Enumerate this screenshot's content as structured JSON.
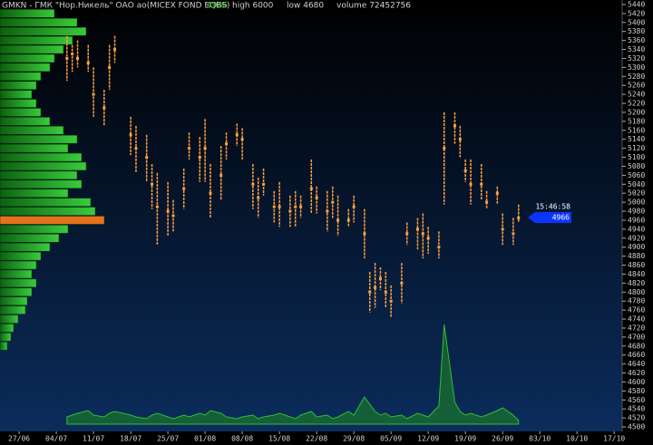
{
  "chart_data": {
    "type": "candlestick",
    "title": "GMKN - ГМК \"Нор.Никель\" ОАО ао(MICEX FOND EQBS)",
    "last_price": 4966,
    "high_label": "high 6000",
    "low_label": "low 4680",
    "volume_label": "volume 72452756",
    "time_label": "15:46:58",
    "candle_color": "#ffa040",
    "volume_color": "#1f8a1f",
    "profile_color": "#22b422",
    "profile_highlight_color": "#ff7a1a",
    "tag_color": "#0a35ff",
    "ylim": [
      4490,
      5450
    ],
    "yticks": [
      5440,
      5420,
      5400,
      5380,
      5360,
      5340,
      5320,
      5300,
      5280,
      5260,
      5240,
      5220,
      5200,
      5180,
      5160,
      5140,
      5120,
      5100,
      5080,
      5060,
      5040,
      5020,
      5000,
      4980,
      4960,
      4940,
      4920,
      4900,
      4880,
      4860,
      4840,
      4820,
      4800,
      4780,
      4760,
      4740,
      4720,
      4700,
      4680,
      4660,
      4640,
      4620,
      4600,
      4580,
      4560,
      4540,
      4520,
      4500
    ],
    "xlim": [
      -3.6,
      113.5
    ],
    "xticks": [
      {
        "value": 0,
        "label": "27/06"
      },
      {
        "value": 7,
        "label": "04/07"
      },
      {
        "value": 14,
        "label": "11/07"
      },
      {
        "value": 21,
        "label": "18/07"
      },
      {
        "value": 28,
        "label": "25/07"
      },
      {
        "value": 35,
        "label": "01/08"
      },
      {
        "value": 42,
        "label": "08/08"
      },
      {
        "value": 49,
        "label": "15/08"
      },
      {
        "value": 56,
        "label": "22/08"
      },
      {
        "value": 63,
        "label": "29/08"
      },
      {
        "value": 70,
        "label": "05/09"
      },
      {
        "value": 77,
        "label": "12/09"
      },
      {
        "value": 84,
        "label": "19/09"
      },
      {
        "value": 91,
        "label": "26/09"
      },
      {
        "value": 98,
        "label": "03/10"
      },
      {
        "value": 105,
        "label": "10/10"
      },
      {
        "value": 112,
        "label": "17/10"
      }
    ],
    "x": [
      9,
      10,
      11,
      13,
      14,
      16,
      17,
      18,
      21,
      22,
      24,
      25,
      26,
      28,
      29,
      31,
      32,
      34,
      35,
      36,
      38,
      39,
      41,
      42,
      44,
      45,
      46,
      48,
      49,
      51,
      52,
      53,
      55,
      56,
      58,
      59,
      60,
      62,
      63,
      65,
      66,
      67,
      68,
      69,
      70,
      72,
      73,
      75,
      76,
      77,
      79,
      80,
      82,
      83,
      84,
      85,
      87,
      88,
      90,
      91,
      93,
      94
    ],
    "high": [
      5370,
      5350,
      5360,
      5350,
      5300,
      5250,
      5350,
      5370,
      5190,
      5170,
      5150,
      5085,
      5065,
      5045,
      5005,
      5075,
      5155,
      5145,
      5185,
      5085,
      5125,
      5155,
      5175,
      5165,
      5085,
      5055,
      5075,
      5025,
      5045,
      5015,
      5025,
      5015,
      5095,
      5035,
      5025,
      5035,
      5015,
      4985,
      5015,
      4985,
      4845,
      4865,
      4855,
      4845,
      4815,
      4865,
      4955,
      4965,
      4975,
      4945,
      4935,
      5200,
      5200,
      5170,
      5095,
      5095,
      5085,
      5025,
      5035,
      4975,
      4965,
      4995
    ],
    "low": [
      5270,
      5290,
      5300,
      5290,
      5190,
      5170,
      5250,
      5310,
      5105,
      5065,
      5045,
      4985,
      4905,
      4925,
      4935,
      4985,
      5095,
      5045,
      5045,
      4965,
      5005,
      5095,
      5125,
      5095,
      4985,
      4965,
      5015,
      4955,
      4945,
      4945,
      4945,
      4965,
      4975,
      4975,
      4935,
      4965,
      4925,
      4945,
      4955,
      4875,
      4755,
      4765,
      4805,
      4765,
      4745,
      4775,
      4905,
      4895,
      4875,
      4885,
      4875,
      4995,
      5130,
      5100,
      5045,
      4995,
      5005,
      4985,
      4995,
      4905,
      4905,
      4955
    ],
    "close": [
      5320,
      5330,
      5320,
      5310,
      5240,
      5210,
      5300,
      5340,
      5150,
      5120,
      5100,
      5040,
      4990,
      4980,
      4970,
      5030,
      5120,
      5100,
      5120,
      5020,
      5060,
      5130,
      5150,
      5140,
      5040,
      5010,
      5040,
      4990,
      4990,
      4980,
      4990,
      4990,
      5030,
      5010,
      4980,
      5000,
      4960,
      4960,
      4990,
      4930,
      4800,
      4810,
      4830,
      4800,
      4780,
      4820,
      4930,
      4940,
      4930,
      4920,
      4900,
      5120,
      5170,
      5140,
      5070,
      5040,
      5040,
      5000,
      5020,
      4940,
      4930,
      4965
    ],
    "volume": [
      8,
      10,
      12,
      15,
      10,
      8,
      12,
      14,
      10,
      8,
      6,
      10,
      12,
      8,
      6,
      10,
      8,
      12,
      10,
      15,
      12,
      8,
      6,
      8,
      10,
      6,
      8,
      10,
      12,
      8,
      6,
      10,
      14,
      8,
      10,
      6,
      8,
      14,
      10,
      30,
      22,
      14,
      10,
      12,
      8,
      10,
      6,
      12,
      10,
      8,
      20,
      110,
      24,
      14,
      10,
      12,
      8,
      10,
      15,
      18,
      10,
      4
    ],
    "vlim": [
      0,
      120
    ],
    "profile": {
      "levels": [
        5420,
        5400,
        5380,
        5360,
        5340,
        5320,
        5300,
        5280,
        5260,
        5240,
        5220,
        5200,
        5180,
        5160,
        5140,
        5120,
        5100,
        5080,
        5060,
        5040,
        5020,
        5000,
        4980,
        4960,
        4940,
        4920,
        4900,
        4880,
        4860,
        4840,
        4820,
        4800,
        4780,
        4760,
        4740,
        4720,
        4700,
        4680
      ],
      "values": [
        60,
        85,
        95,
        80,
        70,
        60,
        55,
        45,
        40,
        35,
        40,
        45,
        55,
        70,
        85,
        75,
        90,
        95,
        85,
        90,
        75,
        100,
        105,
        115,
        75,
        65,
        55,
        45,
        40,
        35,
        40,
        35,
        30,
        28,
        20,
        15,
        12,
        8
      ],
      "xlim": [
        0,
        120
      ]
    }
  }
}
